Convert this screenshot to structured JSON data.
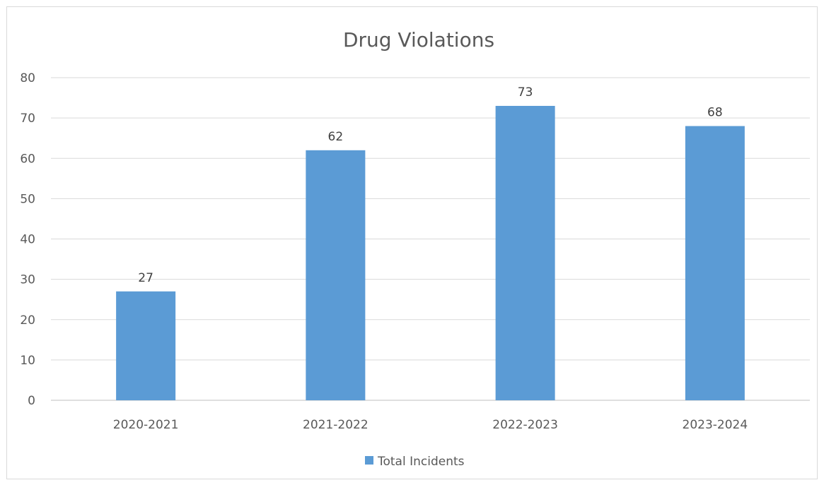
{
  "chart_data": {
    "type": "bar",
    "title": "Drug Violations",
    "categories": [
      "2020-2021",
      "2021-2022",
      "2022-2023",
      "2023-2024"
    ],
    "series": [
      {
        "name": "Total Incidents",
        "values": [
          27,
          62,
          73,
          68
        ],
        "color": "#5b9bd5"
      }
    ],
    "ylim": [
      0,
      80
    ],
    "yticks": [
      0,
      10,
      20,
      30,
      40,
      50,
      60,
      70,
      80
    ],
    "grid": true,
    "legend": "bottom",
    "data_labels": true
  }
}
